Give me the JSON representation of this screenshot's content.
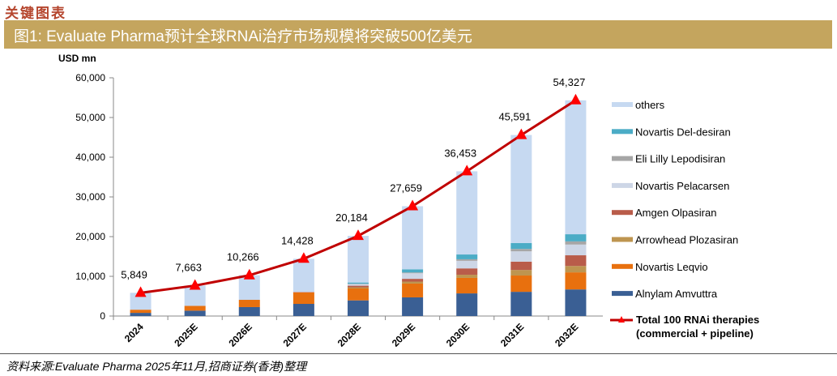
{
  "header": {
    "section": "关键图表",
    "figure_title": "图1:  Evaluate Pharma预计全球RNAi治疗市场规模将突破500亿美元"
  },
  "source": "资料来源:Evaluate Pharma 2025年11月,招商证券(香港)整理",
  "chart_data": {
    "type": "bar",
    "stacked": true,
    "ylabel": "USD mn",
    "ylim": [
      0,
      60000
    ],
    "yticks": [
      "0",
      "10,000",
      "20,000",
      "30,000",
      "40,000",
      "50,000",
      "60,000"
    ],
    "categories": [
      "2024",
      "2025E",
      "2026E",
      "2027E",
      "2028E",
      "2029E",
      "2030E",
      "2031E",
      "2032E"
    ],
    "series": [
      {
        "name": "Alnylam Amvuttra",
        "color": "#3a5f94",
        "values": [
          800,
          1350,
          2250,
          3060,
          3940,
          4700,
          5700,
          6100,
          6700
        ]
      },
      {
        "name": "Novartis Leqvio",
        "color": "#e8700e",
        "values": [
          800,
          1200,
          1830,
          2900,
          3000,
          3470,
          3900,
          4100,
          4300
        ]
      },
      {
        "name": "Arrowhead Plozasiran",
        "color": "#be9550",
        "values": [
          0,
          0,
          0,
          0,
          300,
          500,
          800,
          1400,
          1600
        ]
      },
      {
        "name": "Amgen Olpasiran",
        "color": "#b95c4a",
        "values": [
          0,
          0,
          0,
          100,
          400,
          700,
          1600,
          2100,
          2700
        ]
      },
      {
        "name": "Novartis Pelacarsen",
        "color": "#cdd6e6",
        "values": [
          0,
          0,
          0,
          0,
          400,
          1400,
          1900,
          2600,
          2700
        ]
      },
      {
        "name": "Eli Lilly Lepodisiran",
        "color": "#a6a6a6",
        "values": [
          0,
          0,
          0,
          0,
          100,
          200,
          400,
          600,
          800
        ]
      },
      {
        "name": "Novartis Del-desiran",
        "color": "#4bacc6",
        "values": [
          0,
          0,
          0,
          0,
          300,
          800,
          1200,
          1500,
          1800
        ]
      },
      {
        "name": "others",
        "color": "#c6d9f1",
        "values": [
          4249,
          5113,
          6186,
          8368,
          11744,
          15889,
          20953,
          27191,
          33727
        ]
      }
    ],
    "line": {
      "name": "Total 100 RNAi therapies (commercial + pipeline)",
      "color": "#c00000",
      "marker_color": "#ff0000",
      "values": [
        5849,
        7663,
        10266,
        14428,
        20184,
        27659,
        36453,
        45591,
        54327
      ],
      "labels": [
        "5,849",
        "7,663",
        "10,266",
        "14,428",
        "20,184",
        "27,659",
        "36,453",
        "45,591",
        "54,327"
      ]
    },
    "legend_order": [
      "others",
      "Novartis Del-desiran",
      "Eli Lilly Lepodisiran",
      "Novartis Pelacarsen",
      "Amgen Olpasiran",
      "Arrowhead Plozasiran",
      "Novartis Leqvio",
      "Alnylam Amvuttra"
    ],
    "legend": "right",
    "grid": false
  }
}
